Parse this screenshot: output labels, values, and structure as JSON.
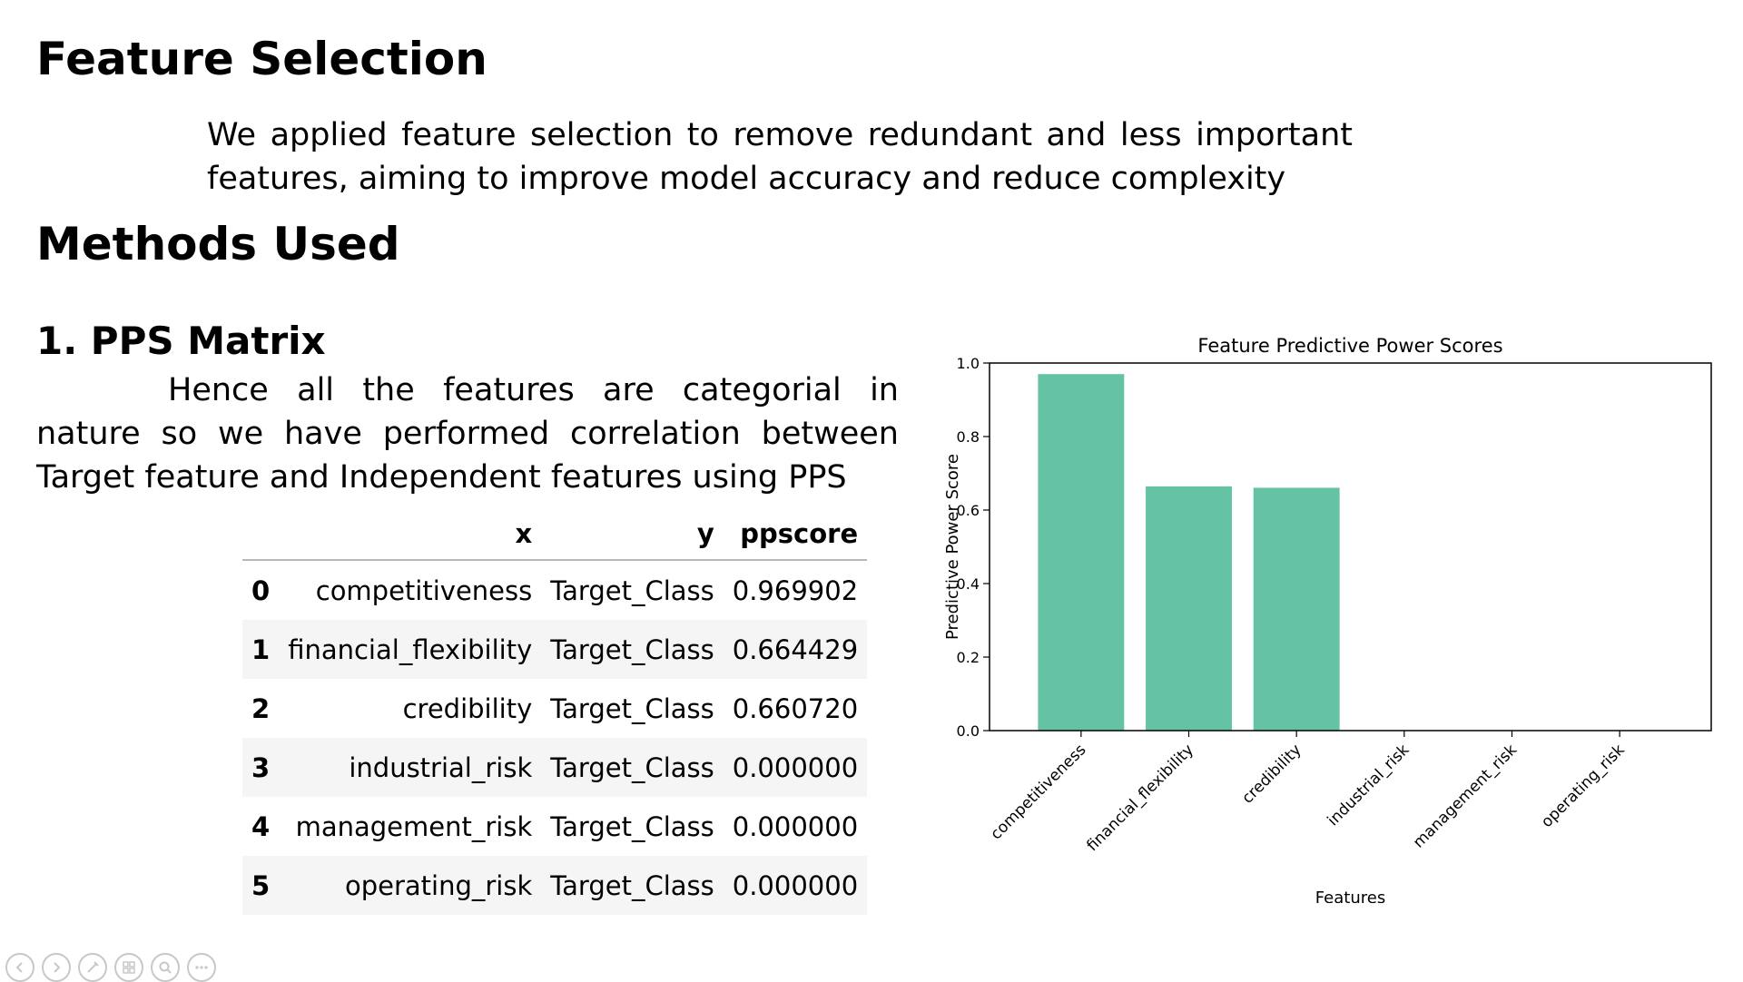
{
  "slide": {
    "title": "Feature Selection",
    "intro": "We applied feature selection to remove redundant and less important features, aiming to improve model accuracy and reduce complexity",
    "methods_title": "Methods Used",
    "method1_title": "1. PPS Matrix",
    "method1_text": "Hence all the features are categorial in nature so we have performed correlation between Target feature and Independent features using PPS"
  },
  "table": {
    "headers": [
      "",
      "x",
      "y",
      "ppscore"
    ],
    "rows": [
      [
        "0",
        "competitiveness",
        "Target_Class",
        "0.969902"
      ],
      [
        "1",
        "financial_flexibility",
        "Target_Class",
        "0.664429"
      ],
      [
        "2",
        "credibility",
        "Target_Class",
        "0.660720"
      ],
      [
        "3",
        "industrial_risk",
        "Target_Class",
        "0.000000"
      ],
      [
        "4",
        "management_risk",
        "Target_Class",
        "0.000000"
      ],
      [
        "5",
        "operating_risk",
        "Target_Class",
        "0.000000"
      ]
    ]
  },
  "chart_data": {
    "type": "bar",
    "title": "Feature Predictive Power Scores",
    "xlabel": "Features",
    "ylabel": "Predictive Power Score",
    "categories": [
      "competitiveness",
      "financial_flexibility",
      "credibility",
      "industrial_risk",
      "management_risk",
      "operating_risk"
    ],
    "values": [
      0.969902,
      0.664429,
      0.66072,
      0.0,
      0.0,
      0.0
    ],
    "yticks": [
      "0.0",
      "0.2",
      "0.4",
      "0.6",
      "0.8",
      "1.0"
    ],
    "ylim": [
      0,
      1.0
    ],
    "grid": false,
    "bar_color": "#66c2a5"
  },
  "toolbar": {
    "icons": [
      "previous-icon",
      "next-icon",
      "pen-icon",
      "slides-icon",
      "zoom-icon",
      "more-icon"
    ]
  }
}
